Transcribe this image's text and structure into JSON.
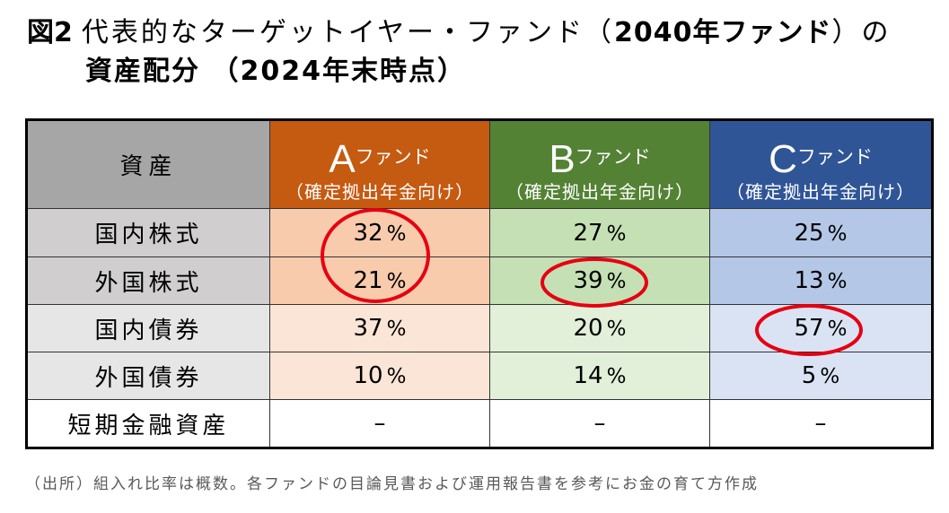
{
  "title": {
    "figure_label": "図2",
    "line1_regular": "代表的なターゲットイヤー・ファンド（",
    "line1_bold": "2040年ファンド",
    "line1_end": "）の",
    "line2": "資産配分 （2024年末時点）"
  },
  "chart_data": {
    "type": "table",
    "asset_column": {
      "label": "資産",
      "header_color": "#A6A6A6",
      "shade_dark": "#D0CECE",
      "shade_light": "#E7E6E6"
    },
    "funds": [
      {
        "letter": "A",
        "name": "ファンド",
        "note": "（確定拠出年金向け）",
        "header_color": "#C55A11",
        "shade_dark": "#F8CBAD",
        "shade_light": "#FBE5D6"
      },
      {
        "letter": "B",
        "name": "ファンド",
        "note": "（確定拠出年金向け）",
        "header_color": "#548235",
        "shade_dark": "#C5E0B4",
        "shade_light": "#E2F0D9"
      },
      {
        "letter": "C",
        "name": "ファンド",
        "note": "（確定拠出年金向け）",
        "header_color": "#2F5597",
        "shade_dark": "#B4C7E7",
        "shade_light": "#DAE3F3"
      }
    ],
    "unit": "%",
    "empty_mark": "–",
    "rows": [
      {
        "label": "国内株式",
        "values": [
          32,
          27,
          25
        ]
      },
      {
        "label": "外国株式",
        "values": [
          21,
          39,
          13
        ]
      },
      {
        "label": "国内債券",
        "values": [
          37,
          20,
          57
        ]
      },
      {
        "label": "外国債券",
        "values": [
          10,
          14,
          5
        ]
      },
      {
        "label": "短期金融資産",
        "values": [
          null,
          null,
          null
        ]
      }
    ],
    "highlight_color": "#E60012"
  },
  "footnote": "（出所）組入れ比率は概数。各ファンドの目論見書および運用報告書を参考にお金の育て方作成"
}
